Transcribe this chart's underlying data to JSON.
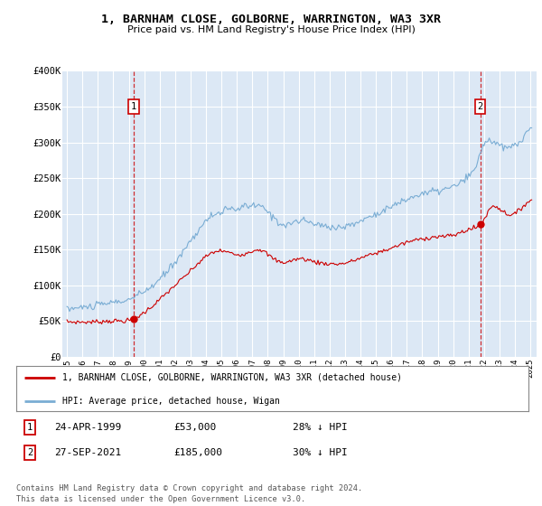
{
  "title": "1, BARNHAM CLOSE, GOLBORNE, WARRINGTON, WA3 3XR",
  "subtitle": "Price paid vs. HM Land Registry's House Price Index (HPI)",
  "ylim": [
    0,
    400000
  ],
  "yticks": [
    0,
    50000,
    100000,
    150000,
    200000,
    250000,
    300000,
    350000,
    400000
  ],
  "ytick_labels": [
    "£0",
    "£50K",
    "£100K",
    "£150K",
    "£200K",
    "£250K",
    "£300K",
    "£350K",
    "£400K"
  ],
  "bg_color": "#dce8f5",
  "grid_color": "#ffffff",
  "sale1_year": 1999.31,
  "sale1_price": 53000,
  "sale1_label": "1",
  "sale1_date": "24-APR-1999",
  "sale1_price_str": "£53,000",
  "sale1_hpi": "28% ↓ HPI",
  "sale2_year": 2021.75,
  "sale2_price": 185000,
  "sale2_label": "2",
  "sale2_date": "27-SEP-2021",
  "sale2_price_str": "£185,000",
  "sale2_hpi": "30% ↓ HPI",
  "red_line_color": "#cc0000",
  "blue_line_color": "#7aadd4",
  "marker_box_color": "#cc0000",
  "legend_line1": "1, BARNHAM CLOSE, GOLBORNE, WARRINGTON, WA3 3XR (detached house)",
  "legend_line2": "HPI: Average price, detached house, Wigan",
  "footer": "Contains HM Land Registry data © Crown copyright and database right 2024.\nThis data is licensed under the Open Government Licence v3.0.",
  "xticks": [
    1995,
    1996,
    1997,
    1998,
    1999,
    2000,
    2001,
    2002,
    2003,
    2004,
    2005,
    2006,
    2007,
    2008,
    2009,
    2010,
    2011,
    2012,
    2013,
    2014,
    2015,
    2016,
    2017,
    2018,
    2019,
    2020,
    2021,
    2022,
    2023,
    2024,
    2025
  ]
}
